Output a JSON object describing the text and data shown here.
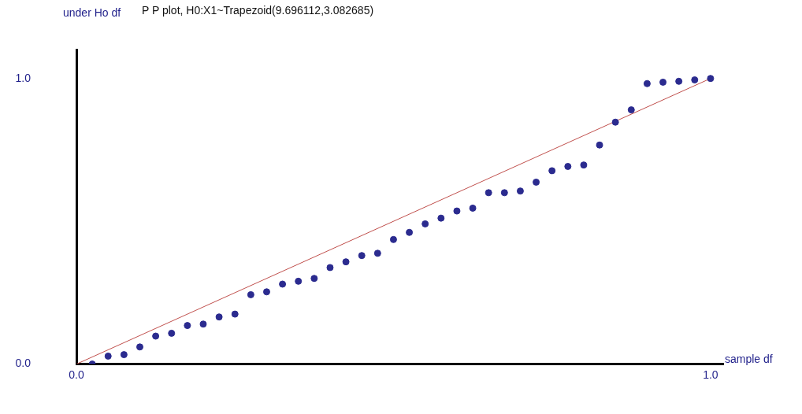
{
  "chart_data": {
    "type": "scatter",
    "title": "P P plot, H0:X1~Trapezoid(9.696112,3.082685)",
    "xlabel": "sample df",
    "ylabel": "under Ho df",
    "xlim": [
      0,
      1.02
    ],
    "ylim": [
      0,
      1.1
    ],
    "xticks": [
      {
        "value": 0,
        "label": "0.0"
      },
      {
        "value": 1,
        "label": "1.0"
      }
    ],
    "yticks": [
      {
        "value": 0,
        "label": "0.0"
      },
      {
        "value": 1,
        "label": "1.0"
      }
    ],
    "grid": false,
    "legend": false,
    "marker": "circle",
    "series": [
      {
        "type": "line",
        "marker": "none",
        "color": "#c0504d",
        "x": [
          0,
          1
        ],
        "values": [
          0,
          1
        ]
      },
      {
        "color": "#2b2b8f",
        "x": [
          0.025,
          0.05,
          0.075,
          0.1,
          0.125,
          0.15,
          0.175,
          0.2,
          0.225,
          0.25,
          0.275,
          0.3,
          0.325,
          0.35,
          0.375,
          0.4,
          0.425,
          0.45,
          0.475,
          0.5,
          0.525,
          0.55,
          0.575,
          0.6,
          0.625,
          0.65,
          0.675,
          0.7,
          0.725,
          0.75,
          0.775,
          0.8,
          0.825,
          0.85,
          0.875,
          0.9,
          0.925,
          0.95,
          0.975,
          1.0
        ],
        "values": [
          0.0,
          0.028,
          0.033,
          0.06,
          0.098,
          0.108,
          0.135,
          0.14,
          0.165,
          0.175,
          0.243,
          0.253,
          0.28,
          0.29,
          0.3,
          0.338,
          0.358,
          0.38,
          0.388,
          0.436,
          0.461,
          0.491,
          0.511,
          0.536,
          0.546,
          0.6,
          0.6,
          0.606,
          0.637,
          0.677,
          0.692,
          0.697,
          0.767,
          0.847,
          0.89,
          0.982,
          0.987,
          0.99,
          0.995,
          1.0
        ]
      }
    ]
  }
}
